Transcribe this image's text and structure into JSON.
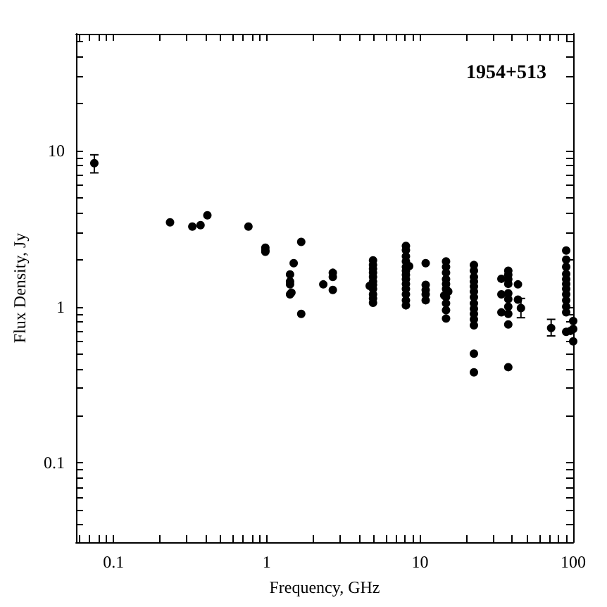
{
  "chart_data": {
    "type": "scatter",
    "title": "1954+513",
    "xlabel": "Frequency, GHz",
    "ylabel": "Flux Density, Jy",
    "log": "xy",
    "grid": false,
    "marker": "circle",
    "xlim": [
      0.057,
      100
    ],
    "ylim": [
      0.031,
      56
    ],
    "xticks": [
      {
        "value": 0.06,
        "label": null
      },
      {
        "value": 0.07,
        "label": null
      },
      {
        "value": 0.08,
        "label": null
      },
      {
        "value": 0.09,
        "label": null
      },
      0.1,
      {
        "value": 0.2,
        "label": null
      },
      {
        "value": 0.3,
        "label": null
      },
      {
        "value": 0.4,
        "label": null
      },
      {
        "value": 0.5,
        "label": null
      },
      {
        "value": 0.6,
        "label": null
      },
      {
        "value": 0.7,
        "label": null
      },
      {
        "value": 0.8,
        "label": null
      },
      {
        "value": 0.9,
        "label": null
      },
      1,
      {
        "value": 2,
        "label": null
      },
      {
        "value": 3,
        "label": null
      },
      {
        "value": 4,
        "label": null
      },
      {
        "value": 5,
        "label": null
      },
      {
        "value": 6,
        "label": null
      },
      {
        "value": 7,
        "label": null
      },
      {
        "value": 8,
        "label": null
      },
      {
        "value": 9,
        "label": null
      },
      10,
      {
        "value": 20,
        "label": null
      },
      {
        "value": 30,
        "label": null
      },
      {
        "value": 40,
        "label": null
      },
      {
        "value": 50,
        "label": null
      },
      {
        "value": 60,
        "label": null
      },
      {
        "value": 70,
        "label": null
      },
      {
        "value": 80,
        "label": null
      },
      {
        "value": 90,
        "label": null
      },
      100
    ],
    "yticks": [
      {
        "value": 0.04,
        "label": null
      },
      {
        "value": 0.05,
        "label": null
      },
      {
        "value": 0.06,
        "label": null
      },
      {
        "value": 0.07,
        "label": null
      },
      {
        "value": 0.08,
        "label": null
      },
      {
        "value": 0.09,
        "label": null
      },
      0.1,
      {
        "value": 0.2,
        "label": null
      },
      {
        "value": 0.3,
        "label": null
      },
      {
        "value": 0.4,
        "label": null
      },
      {
        "value": 0.5,
        "label": null
      },
      {
        "value": 0.6,
        "label": null
      },
      {
        "value": 0.7,
        "label": null
      },
      {
        "value": 0.8,
        "label": null
      },
      {
        "value": 0.9,
        "label": null
      },
      1,
      {
        "value": 2,
        "label": null
      },
      {
        "value": 3,
        "label": null
      },
      {
        "value": 4,
        "label": null
      },
      {
        "value": 5,
        "label": null
      },
      {
        "value": 6,
        "label": null
      },
      {
        "value": 7,
        "label": null
      },
      {
        "value": 8,
        "label": null
      },
      {
        "value": 9,
        "label": null
      },
      10,
      {
        "value": 20,
        "label": null
      },
      {
        "value": 30,
        "label": null
      },
      {
        "value": 40,
        "label": null
      },
      {
        "value": 50,
        "label": null
      }
    ],
    "series": [
      {
        "color": "#000000",
        "x": [
          0.075,
          0.234,
          0.327,
          0.37,
          0.41,
          0.76,
          0.98,
          0.98,
          0.98,
          1.68,
          1.5,
          1.42,
          1.42,
          1.42,
          1.42,
          1.45,
          1.68,
          2.34,
          2.7,
          2.7,
          2.7,
          4.94,
          4.94,
          4.94,
          4.94,
          4.94,
          4.94,
          4.94,
          4.94,
          4.94,
          4.94,
          4.94,
          4.7,
          8.1,
          8.1,
          8.1,
          8.1,
          8.1,
          8.1,
          8.1,
          8.1,
          8.1,
          8.1,
          8.1,
          8.1,
          8.1,
          8.5,
          10.9,
          10.9,
          10.9,
          10.9,
          10.9,
          14.8,
          14.8,
          14.8,
          14.8,
          14.8,
          14.8,
          14.8,
          14.8,
          14.8,
          14.8,
          14.4,
          15.3,
          22.5,
          22.5,
          22.5,
          22.5,
          22.5,
          22.5,
          22.5,
          22.5,
          22.5,
          22.5,
          22.5,
          22.5,
          22.5,
          22.5,
          37.7,
          37.7,
          37.7,
          37.7,
          37.7,
          37.7,
          37.7,
          37.7,
          37.7,
          37.7,
          34,
          34,
          34,
          43.6,
          43.6,
          45.6,
          71.8,
          90,
          90,
          90,
          90,
          90,
          90,
          90,
          90,
          90,
          90,
          90,
          90,
          100,
          100,
          100,
          96
        ],
        "values": [
          8.3,
          3.47,
          3.26,
          3.33,
          3.85,
          3.26,
          2.39,
          2.29,
          2.25,
          2.6,
          1.9,
          1.61,
          1.45,
          1.39,
          1.2,
          1.23,
          0.9,
          1.39,
          1.65,
          1.55,
          1.28,
          1.98,
          1.85,
          1.75,
          1.65,
          1.55,
          1.45,
          1.38,
          1.3,
          1.2,
          1.13,
          1.06,
          1.36,
          2.45,
          2.3,
          2.1,
          1.95,
          1.8,
          1.7,
          1.6,
          1.5,
          1.4,
          1.3,
          1.2,
          1.1,
          1.02,
          1.82,
          1.9,
          1.38,
          1.28,
          1.2,
          1.1,
          1.95,
          1.8,
          1.65,
          1.5,
          1.4,
          1.3,
          1.15,
          1.05,
          0.95,
          0.84,
          1.18,
          1.25,
          1.85,
          1.7,
          1.55,
          1.45,
          1.35,
          1.25,
          1.15,
          1.05,
          0.97,
          0.9,
          0.83,
          0.76,
          0.5,
          0.38,
          1.7,
          1.6,
          1.5,
          1.4,
          1.22,
          1.12,
          1.0,
          0.9,
          0.77,
          0.41,
          1.51,
          1.2,
          0.92,
          1.39,
          1.11,
          0.98,
          0.73,
          2.29,
          2.0,
          1.8,
          1.62,
          1.5,
          1.4,
          1.3,
          1.2,
          1.1,
          1.0,
          0.92,
          0.69,
          0.81,
          0.72,
          0.6,
          0.7
        ],
        "errors": [
          [
            7.2,
            9.4
          ],
          null,
          null,
          null,
          null,
          null,
          null,
          null,
          null,
          null,
          null,
          null,
          null,
          null,
          null,
          null,
          null,
          null,
          null,
          null,
          null,
          null,
          null,
          null,
          null,
          null,
          null,
          null,
          null,
          null,
          null,
          null,
          null,
          null,
          null,
          null,
          null,
          null,
          null,
          null,
          null,
          null,
          null,
          null,
          null,
          null,
          null,
          null,
          null,
          null,
          null,
          null,
          null,
          null,
          null,
          null,
          null,
          null,
          null,
          null,
          null,
          null,
          null,
          null,
          null,
          null,
          null,
          null,
          null,
          null,
          null,
          null,
          null,
          null,
          null,
          null,
          null,
          null,
          null,
          null,
          null,
          null,
          null,
          null,
          null,
          null,
          null,
          null,
          null,
          null,
          null,
          null,
          null,
          [
            0.85,
            1.13
          ],
          [
            0.65,
            0.83
          ],
          null,
          null,
          null,
          null,
          null,
          null,
          null,
          null,
          null,
          null,
          null,
          null,
          null,
          null,
          null,
          null
        ]
      }
    ]
  }
}
